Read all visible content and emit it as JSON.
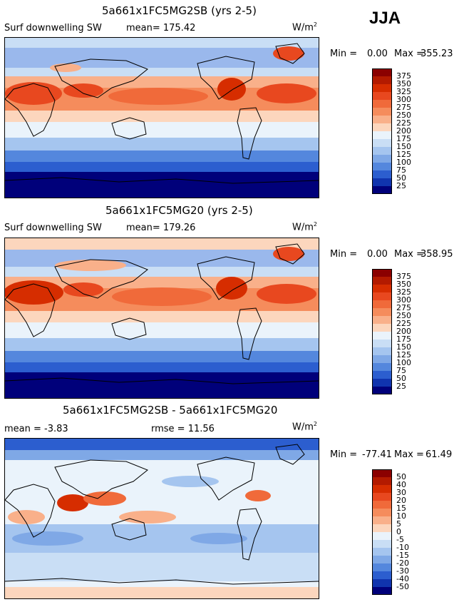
{
  "season": "JJA",
  "panels": [
    {
      "id": "p1",
      "title": "5a661x1FC5MG2SB (yrs 2-5)",
      "left_label": "Surf downwelling SW",
      "stat1": "mean= 175.42",
      "stat2": "",
      "units": "W/m",
      "units_sup": "2",
      "min_label": "Min =",
      "min_value": "0.00",
      "max_label": "Max =",
      "max_value": "355.23",
      "kind": "abs",
      "colorbar": {
        "labels": [
          "375",
          "350",
          "325",
          "300",
          "275",
          "250",
          "225",
          "200",
          "175",
          "150",
          "125",
          "100",
          "75",
          "50",
          "25"
        ],
        "colors": [
          "#8b0000",
          "#b31a00",
          "#d62d00",
          "#e8481f",
          "#f06a3a",
          "#f58c5c",
          "#f9b08a",
          "#fcd6bd",
          "#eaf3fb",
          "#c9def5",
          "#a5c5ef",
          "#7fa8e6",
          "#5487dd",
          "#2c5ecf",
          "#1034ae",
          "#00007a"
        ]
      }
    },
    {
      "id": "p2",
      "title": "5a661x1FC5MG20 (yrs 2-5)",
      "left_label": "Surf downwelling SW",
      "stat1": "mean= 179.26",
      "stat2": "",
      "units": "W/m",
      "units_sup": "2",
      "min_label": "Min =",
      "min_value": "0.00",
      "max_label": "Max =",
      "max_value": "358.95",
      "kind": "abs",
      "colorbar": {
        "labels": [
          "375",
          "350",
          "325",
          "300",
          "275",
          "250",
          "225",
          "200",
          "175",
          "150",
          "125",
          "100",
          "75",
          "50",
          "25"
        ],
        "colors": [
          "#8b0000",
          "#b31a00",
          "#d62d00",
          "#e8481f",
          "#f06a3a",
          "#f58c5c",
          "#f9b08a",
          "#fcd6bd",
          "#eaf3fb",
          "#c9def5",
          "#a5c5ef",
          "#7fa8e6",
          "#5487dd",
          "#2c5ecf",
          "#1034ae",
          "#00007a"
        ]
      }
    },
    {
      "id": "p3",
      "title": "5a661x1FC5MG2SB - 5a661x1FC5MG20",
      "left_label": "mean = -3.83",
      "stat1": "",
      "stat2": "rmse = 11.56",
      "units": "W/m",
      "units_sup": "2",
      "min_label": "Min =",
      "min_value": "-77.41",
      "max_label": "Max =",
      "max_value": "61.49",
      "kind": "diff",
      "colorbar": {
        "labels": [
          "50",
          "40",
          "30",
          "20",
          "15",
          "10",
          "5",
          "0",
          "-5",
          "-10",
          "-15",
          "-20",
          "-30",
          "-40",
          "-50"
        ],
        "colors": [
          "#8b0000",
          "#b31a00",
          "#d62d00",
          "#e8481f",
          "#f06a3a",
          "#f58c5c",
          "#f9b08a",
          "#fcd6bd",
          "#eaf3fb",
          "#c9def5",
          "#a5c5ef",
          "#7fa8e6",
          "#5487dd",
          "#2c5ecf",
          "#1034ae",
          "#00007a"
        ]
      }
    }
  ],
  "chart_data": [
    {
      "type": "heatmap",
      "title": "5a661x1FC5MG2SB (yrs 2-5)",
      "variable": "Surf downwelling SW",
      "mean": 175.42,
      "min": 0.0,
      "max": 355.23,
      "units": "W/m2",
      "colorbar_levels": [
        25,
        50,
        75,
        100,
        125,
        150,
        175,
        200,
        225,
        250,
        275,
        300,
        325,
        350,
        375
      ]
    },
    {
      "type": "heatmap",
      "title": "5a661x1FC5MG20 (yrs 2-5)",
      "variable": "Surf downwelling SW",
      "mean": 179.26,
      "min": 0.0,
      "max": 358.95,
      "units": "W/m2",
      "colorbar_levels": [
        25,
        50,
        75,
        100,
        125,
        150,
        175,
        200,
        225,
        250,
        275,
        300,
        325,
        350,
        375
      ]
    },
    {
      "type": "heatmap",
      "title": "5a661x1FC5MG2SB - 5a661x1FC5MG20",
      "mean": -3.83,
      "rmse": 11.56,
      "min": -77.41,
      "max": 61.49,
      "units": "W/m2",
      "colorbar_levels": [
        -50,
        -40,
        -30,
        -20,
        -15,
        -10,
        -5,
        0,
        5,
        10,
        15,
        20,
        30,
        40,
        50
      ]
    }
  ]
}
